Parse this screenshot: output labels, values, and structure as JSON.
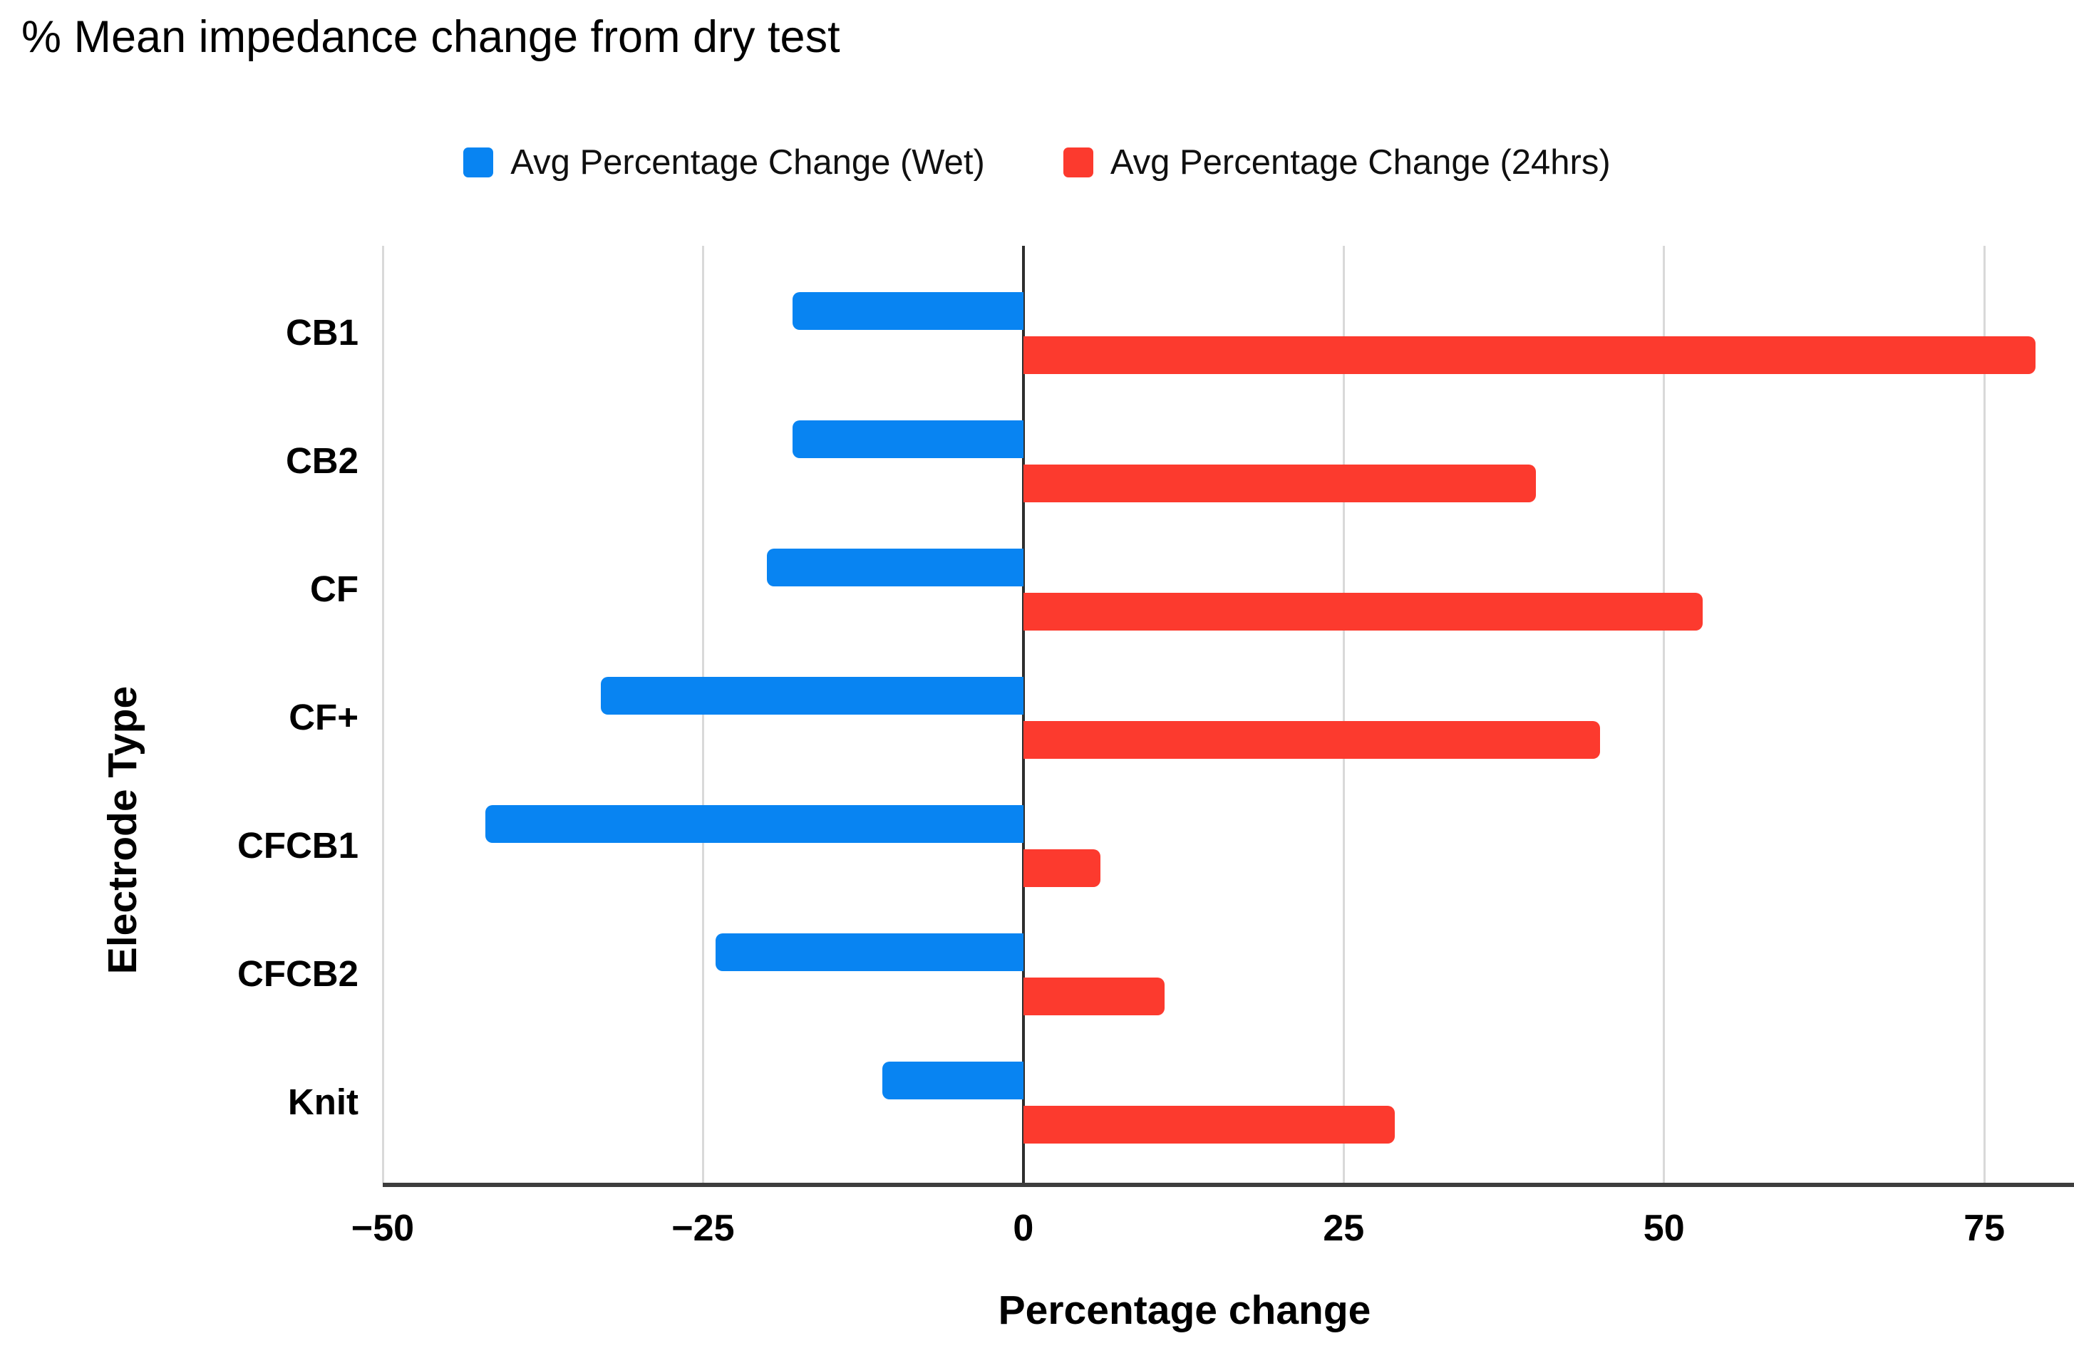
{
  "chart_data": {
    "type": "bar",
    "orientation": "horizontal",
    "title": "% Mean impedance change from dry test",
    "xlabel": "Percentage change",
    "ylabel": "Electrode Type",
    "categories": [
      "CB1",
      "CB2",
      "CF",
      "CF+",
      "CFCB1",
      "CFCB2",
      "Knit"
    ],
    "series": [
      {
        "name": "Avg Percentage Change (Wet)",
        "color": "#0884f2",
        "values": [
          -18,
          -18,
          -20,
          -33,
          -42,
          -24,
          -11
        ]
      },
      {
        "name": "Avg Percentage Change (24hrs)",
        "color": "#fc3a2e",
        "values": [
          79,
          40,
          53,
          45,
          6,
          11,
          29
        ]
      }
    ],
    "x_ticks": [
      {
        "value": -50,
        "label": "−50"
      },
      {
        "value": -25,
        "label": "−25"
      },
      {
        "value": 0,
        "label": "0"
      },
      {
        "value": 25,
        "label": "25"
      },
      {
        "value": 50,
        "label": "50"
      },
      {
        "value": 75,
        "label": "75"
      }
    ],
    "xlim": [
      -50,
      82
    ],
    "grid": true,
    "legend_position": "top",
    "colors": {
      "gridline": "#d9d9d9",
      "zero_line": "#2e2e2e",
      "axis_line": "#3d3d3d",
      "text": "#000000",
      "background": "#ffffff"
    }
  }
}
